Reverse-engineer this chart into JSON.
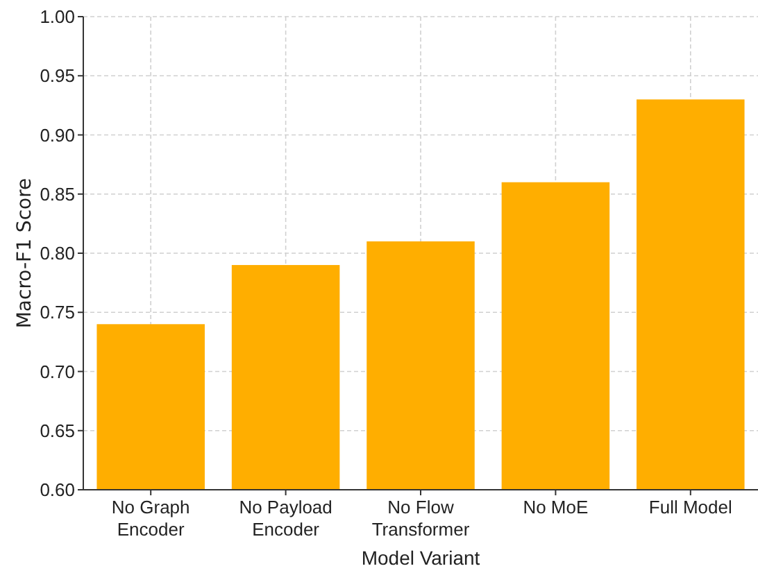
{
  "chart_data": {
    "type": "bar",
    "xlabel": "Model Variant",
    "ylabel": "Macro-F1 Score",
    "categories": [
      "No Graph Encoder",
      "No Payload Encoder",
      "No Flow Transformer",
      "No MoE",
      "Full Model"
    ],
    "values": [
      0.74,
      0.79,
      0.81,
      0.86,
      0.93
    ],
    "color": "#ffae00",
    "ylim": [
      0.6,
      1.0
    ],
    "yticks": [
      {
        "value": 0.6,
        "label": "0.60"
      },
      {
        "value": 0.65,
        "label": "0.65"
      },
      {
        "value": 0.7,
        "label": "0.70"
      },
      {
        "value": 0.75,
        "label": "0.75"
      },
      {
        "value": 0.8,
        "label": "0.80"
      },
      {
        "value": 0.85,
        "label": "0.85"
      },
      {
        "value": 0.9,
        "label": "0.90"
      },
      {
        "value": 0.95,
        "label": "0.95"
      },
      {
        "value": 1.0,
        "label": "1.00"
      }
    ],
    "grid": true
  }
}
